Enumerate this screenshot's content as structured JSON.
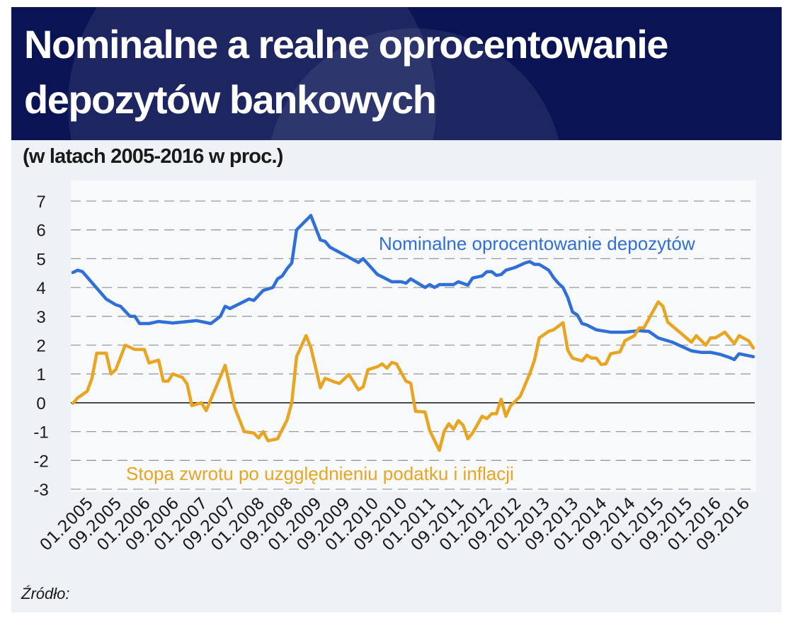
{
  "header": {
    "title_line1": "Nominalne a realne oprocentowanie",
    "title_line2": "depozytów bankowych",
    "subtitle": "(w latach 2005-2016 w proc.)"
  },
  "footer": {
    "source_label": "Źródło:"
  },
  "colors": {
    "header_bg": "#0a1454",
    "nominal": "#2f6fd8",
    "real": "#e8a521",
    "zero_line": "#222222",
    "grid": "#9a9a9a"
  },
  "chart_data": {
    "type": "line",
    "title": "Nominalne a realne oprocentowanie depozytów bankowych",
    "subtitle": "(w latach 2005-2016 w proc.)",
    "ylim": [
      -3,
      7
    ],
    "y_ticks": [
      "7",
      "6",
      "5",
      "4",
      "3",
      "2",
      "1",
      "0",
      "-1",
      "-2",
      "-3"
    ],
    "x_range": [
      "2005-01",
      "2016-12"
    ],
    "x_tick_labels": [
      "01.2005",
      "09.2005",
      "01.2006",
      "09.2006",
      "01.2007",
      "09.2007",
      "01.2008",
      "09.2008",
      "01.2009",
      "09.2009",
      "01.2010",
      "09.2010",
      "01.2011",
      "09.2011",
      "01.2012",
      "09.2012",
      "01.2013",
      "09.2013",
      "01.2014",
      "09.2014",
      "01.2015",
      "09.2015",
      "01.2016",
      "09.2016"
    ],
    "grid": "horizontal dashed",
    "series": [
      {
        "name": "Nominalne oprocentowanie depozytów",
        "color": "#2f6fd8",
        "points": [
          [
            "2005-01",
            4.52
          ],
          [
            "2005-02",
            4.6
          ],
          [
            "2005-03",
            4.55
          ],
          [
            "2005-08",
            3.6
          ],
          [
            "2005-10",
            3.4
          ],
          [
            "2005-11",
            3.35
          ],
          [
            "2006-01",
            3.0
          ],
          [
            "2006-02",
            3.0
          ],
          [
            "2006-03",
            2.75
          ],
          [
            "2006-05",
            2.75
          ],
          [
            "2006-07",
            2.82
          ],
          [
            "2006-10",
            2.77
          ],
          [
            "2007-03",
            2.85
          ],
          [
            "2007-06",
            2.75
          ],
          [
            "2007-08",
            3.0
          ],
          [
            "2007-09",
            3.35
          ],
          [
            "2007-10",
            3.27
          ],
          [
            "2008-02",
            3.6
          ],
          [
            "2008-03",
            3.55
          ],
          [
            "2008-05",
            3.9
          ],
          [
            "2008-07",
            4.0
          ],
          [
            "2008-08",
            4.3
          ],
          [
            "2008-09",
            4.4
          ],
          [
            "2008-10",
            4.65
          ],
          [
            "2008-11",
            4.85
          ],
          [
            "2008-12",
            6.0
          ],
          [
            "2009-03",
            6.5
          ],
          [
            "2009-05",
            5.65
          ],
          [
            "2009-06",
            5.6
          ],
          [
            "2009-07",
            5.4
          ],
          [
            "2010-01",
            4.87
          ],
          [
            "2010-02",
            5.0
          ],
          [
            "2010-05",
            4.45
          ],
          [
            "2010-06",
            4.37
          ],
          [
            "2010-08",
            4.2
          ],
          [
            "2010-10",
            4.2
          ],
          [
            "2010-11",
            4.15
          ],
          [
            "2010-12",
            4.3
          ],
          [
            "2011-03",
            4.0
          ],
          [
            "2011-04",
            4.1
          ],
          [
            "2011-05",
            4.0
          ],
          [
            "2011-06",
            4.1
          ],
          [
            "2011-09",
            4.1
          ],
          [
            "2011-10",
            4.2
          ],
          [
            "2011-12",
            4.08
          ],
          [
            "2012-01",
            4.33
          ],
          [
            "2012-03",
            4.4
          ],
          [
            "2012-04",
            4.55
          ],
          [
            "2012-05",
            4.55
          ],
          [
            "2012-06",
            4.42
          ],
          [
            "2012-07",
            4.45
          ],
          [
            "2012-08",
            4.6
          ],
          [
            "2012-10",
            4.7
          ],
          [
            "2012-12",
            4.85
          ],
          [
            "2013-01",
            4.9
          ],
          [
            "2013-02",
            4.8
          ],
          [
            "2013-03",
            4.8
          ],
          [
            "2013-04",
            4.7
          ],
          [
            "2013-05",
            4.6
          ],
          [
            "2013-06",
            4.35
          ],
          [
            "2013-07",
            4.15
          ],
          [
            "2013-08",
            4.0
          ],
          [
            "2013-09",
            3.65
          ],
          [
            "2013-10",
            3.15
          ],
          [
            "2013-11",
            3.05
          ],
          [
            "2013-12",
            2.75
          ],
          [
            "2014-01",
            2.7
          ],
          [
            "2014-03",
            2.53
          ],
          [
            "2014-06",
            2.45
          ],
          [
            "2014-09",
            2.45
          ],
          [
            "2014-12",
            2.5
          ],
          [
            "2015-02",
            2.48
          ],
          [
            "2015-04",
            2.25
          ],
          [
            "2015-07",
            2.1
          ],
          [
            "2015-11",
            1.8
          ],
          [
            "2016-01",
            1.75
          ],
          [
            "2016-03",
            1.75
          ],
          [
            "2016-05",
            1.68
          ],
          [
            "2016-07",
            1.57
          ],
          [
            "2016-08",
            1.5
          ],
          [
            "2016-09",
            1.7
          ],
          [
            "2016-12",
            1.6
          ]
        ]
      },
      {
        "name": "Stopa zwrotu po uzgględnieniu podatku i inflacji",
        "color": "#e8a521",
        "points": [
          [
            "2005-01",
            -0.02
          ],
          [
            "2005-02",
            0.17
          ],
          [
            "2005-04",
            0.4
          ],
          [
            "2005-05",
            0.85
          ],
          [
            "2005-06",
            1.72
          ],
          [
            "2005-08",
            1.72
          ],
          [
            "2005-09",
            1.0
          ],
          [
            "2005-10",
            1.15
          ],
          [
            "2005-12",
            2.0
          ],
          [
            "2006-02",
            1.85
          ],
          [
            "2006-04",
            1.85
          ],
          [
            "2006-05",
            1.38
          ],
          [
            "2006-07",
            1.48
          ],
          [
            "2006-08",
            0.75
          ],
          [
            "2006-09",
            0.75
          ],
          [
            "2006-10",
            1.0
          ],
          [
            "2006-12",
            0.88
          ],
          [
            "2007-01",
            0.65
          ],
          [
            "2007-02",
            -0.1
          ],
          [
            "2007-04",
            0.0
          ],
          [
            "2007-05",
            -0.27
          ],
          [
            "2007-09",
            1.3
          ],
          [
            "2007-11",
            -0.17
          ],
          [
            "2008-01",
            -1.0
          ],
          [
            "2008-03",
            -1.05
          ],
          [
            "2008-04",
            -1.22
          ],
          [
            "2008-05",
            -1.0
          ],
          [
            "2008-06",
            -1.32
          ],
          [
            "2008-08",
            -1.25
          ],
          [
            "2008-10",
            -0.6
          ],
          [
            "2008-11",
            0.0
          ],
          [
            "2008-12",
            1.6
          ],
          [
            "2009-02",
            2.33
          ],
          [
            "2009-03",
            1.92
          ],
          [
            "2009-05",
            0.52
          ],
          [
            "2009-06",
            0.85
          ],
          [
            "2009-08",
            0.72
          ],
          [
            "2009-09",
            0.67
          ],
          [
            "2009-11",
            0.98
          ],
          [
            "2010-01",
            0.45
          ],
          [
            "2010-02",
            0.55
          ],
          [
            "2010-03",
            1.15
          ],
          [
            "2010-05",
            1.25
          ],
          [
            "2010-06",
            1.35
          ],
          [
            "2010-07",
            1.2
          ],
          [
            "2010-08",
            1.4
          ],
          [
            "2010-09",
            1.35
          ],
          [
            "2010-11",
            0.75
          ],
          [
            "2010-12",
            0.68
          ],
          [
            "2011-01",
            -0.3
          ],
          [
            "2011-03",
            -0.32
          ],
          [
            "2011-04",
            -0.97
          ],
          [
            "2011-06",
            -1.65
          ],
          [
            "2011-07",
            -1.0
          ],
          [
            "2011-08",
            -0.73
          ],
          [
            "2011-09",
            -0.92
          ],
          [
            "2011-10",
            -0.62
          ],
          [
            "2011-11",
            -0.78
          ],
          [
            "2011-12",
            -1.25
          ],
          [
            "2012-01",
            -1.05
          ],
          [
            "2012-03",
            -0.47
          ],
          [
            "2012-04",
            -0.55
          ],
          [
            "2012-05",
            -0.38
          ],
          [
            "2012-06",
            -0.38
          ],
          [
            "2012-07",
            0.12
          ],
          [
            "2012-08",
            -0.47
          ],
          [
            "2012-09",
            -0.1
          ],
          [
            "2012-11",
            0.22
          ],
          [
            "2013-01",
            1.0
          ],
          [
            "2013-02",
            1.48
          ],
          [
            "2013-03",
            2.25
          ],
          [
            "2013-05",
            2.48
          ],
          [
            "2013-06",
            2.53
          ],
          [
            "2013-08",
            2.78
          ],
          [
            "2013-09",
            1.82
          ],
          [
            "2013-10",
            1.55
          ],
          [
            "2013-12",
            1.45
          ],
          [
            "2014-01",
            1.65
          ],
          [
            "2014-02",
            1.55
          ],
          [
            "2014-03",
            1.55
          ],
          [
            "2014-04",
            1.33
          ],
          [
            "2014-05",
            1.35
          ],
          [
            "2014-06",
            1.7
          ],
          [
            "2014-08",
            1.77
          ],
          [
            "2014-09",
            2.15
          ],
          [
            "2014-11",
            2.33
          ],
          [
            "2014-12",
            2.6
          ],
          [
            "2015-01",
            2.6
          ],
          [
            "2015-03",
            3.2
          ],
          [
            "2015-04",
            3.5
          ],
          [
            "2015-05",
            3.35
          ],
          [
            "2015-06",
            2.8
          ],
          [
            "2015-11",
            2.1
          ],
          [
            "2015-12",
            2.33
          ],
          [
            "2016-02",
            2.0
          ],
          [
            "2016-03",
            2.25
          ],
          [
            "2016-04",
            2.25
          ],
          [
            "2016-06",
            2.45
          ],
          [
            "2016-08",
            2.05
          ],
          [
            "2016-09",
            2.33
          ],
          [
            "2016-11",
            2.15
          ],
          [
            "2016-12",
            1.9
          ]
        ]
      }
    ]
  }
}
